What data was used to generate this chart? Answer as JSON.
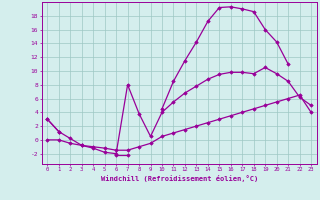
{
  "xlabel": "Windchill (Refroidissement éolien,°C)",
  "bg_color": "#d4eeed",
  "grid_color": "#9ec8c4",
  "line_color": "#990099",
  "x_hours": [
    0,
    1,
    2,
    3,
    4,
    5,
    6,
    7,
    8,
    9,
    10,
    11,
    12,
    13,
    14,
    15,
    16,
    17,
    18,
    19,
    20,
    21,
    22,
    23
  ],
  "curve_arch": [
    3.0,
    1.2,
    null,
    null,
    null,
    null,
    -2.2,
    -2.2,
    null,
    null,
    4.5,
    8.5,
    11.5,
    14.2,
    17.2,
    19.2,
    19.3,
    19.0,
    18.6,
    16.0,
    14.2,
    11.0,
    null,
    null
  ],
  "curve_mid": [
    3.0,
    1.2,
    0.2,
    -0.8,
    -1.2,
    -1.8,
    -2.0,
    8.0,
    3.8,
    0.5,
    4.0,
    5.5,
    6.8,
    7.8,
    8.8,
    9.5,
    9.8,
    9.8,
    9.6,
    10.5,
    9.6,
    8.5,
    6.2,
    5.0
  ],
  "curve_low": [
    0.0,
    0.0,
    -0.5,
    -0.8,
    -1.0,
    -1.2,
    -1.5,
    -1.5,
    -1.0,
    -0.5,
    0.5,
    1.0,
    1.5,
    2.0,
    2.5,
    3.0,
    3.5,
    4.0,
    4.5,
    5.0,
    5.5,
    6.0,
    6.5,
    4.0
  ],
  "ylim": [
    -3.5,
    20
  ],
  "xlim": [
    -0.5,
    23.5
  ],
  "yticks": [
    -2,
    0,
    2,
    4,
    6,
    8,
    10,
    12,
    14,
    16,
    18
  ],
  "xticks": [
    0,
    1,
    2,
    3,
    4,
    5,
    6,
    7,
    8,
    9,
    10,
    11,
    12,
    13,
    14,
    15,
    16,
    17,
    18,
    19,
    20,
    21,
    22,
    23
  ]
}
